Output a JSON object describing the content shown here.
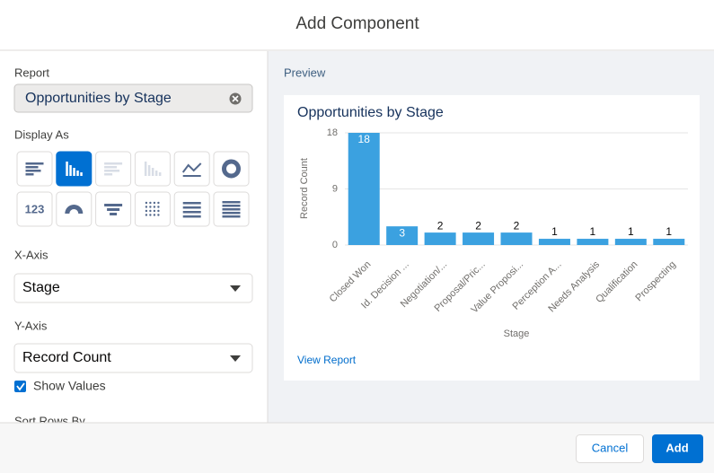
{
  "header": {
    "title": "Add Component"
  },
  "form": {
    "report_label": "Report",
    "report_value": "Opportunities by Stage",
    "display_as_label": "Display As",
    "metric_icon_text": "123",
    "x_axis_label": "X-Axis",
    "x_axis_value": "Stage",
    "y_axis_label": "Y-Axis",
    "y_axis_value": "Record Count",
    "show_values_label": "Show Values",
    "sort_rows_label": "Sort Rows By"
  },
  "preview": {
    "label": "Preview",
    "link": "View Report"
  },
  "chart_data": {
    "type": "bar",
    "title": "Opportunities by Stage",
    "x_label": "Stage",
    "y_label": "Record Count",
    "categories": [
      "Closed Won",
      "Id. Decision ...",
      "Negotiation/...",
      "Proposal/Pric...",
      "Value Proposi...",
      "Perception A...",
      "Needs Analysis",
      "Qualification",
      "Prospecting"
    ],
    "values": [
      18,
      3,
      2,
      2,
      2,
      1,
      1,
      1,
      1
    ],
    "color": "#3ba1e0",
    "ylim": [
      0,
      18
    ],
    "yticks": [
      0,
      9,
      18
    ],
    "grid": true,
    "show_values": true
  },
  "footer": {
    "cancel": "Cancel",
    "add": "Add"
  }
}
